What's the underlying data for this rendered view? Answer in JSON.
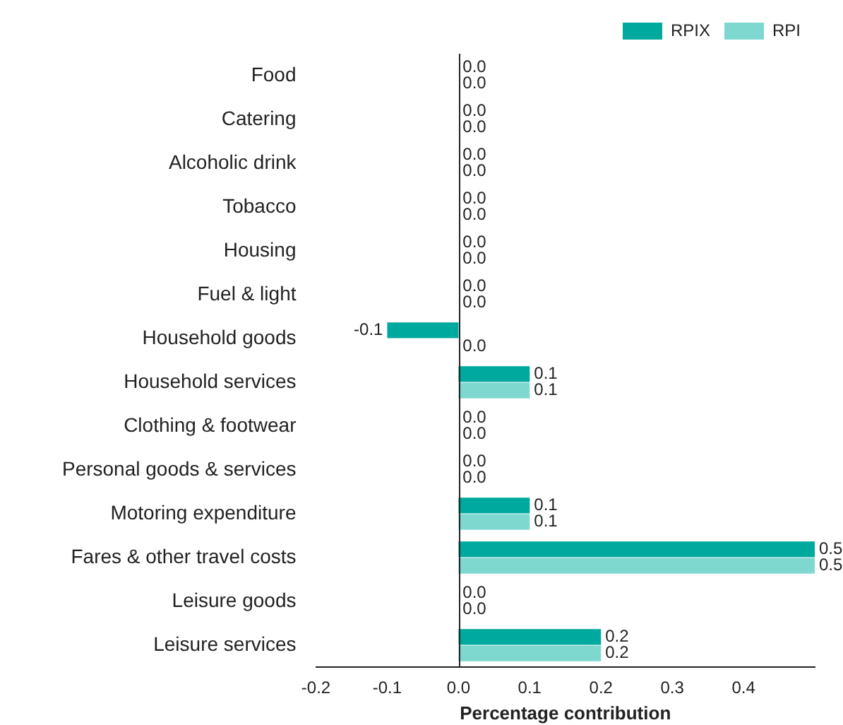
{
  "chart_data": {
    "type": "bar",
    "orientation": "horizontal",
    "xlabel": "Percentage contribution",
    "categories": [
      "Food",
      "Catering",
      "Alcoholic drink",
      "Tobacco",
      "Housing",
      "Fuel & light",
      "Household goods",
      "Household services",
      "Clothing & footwear",
      "Personal goods & services",
      "Motoring expenditure",
      "Fares & other travel costs",
      "Leisure goods",
      "Leisure services"
    ],
    "series": [
      {
        "name": "RPIX",
        "color": "#00a99d",
        "values": [
          0,
          0,
          0,
          0,
          0,
          0,
          -0.1,
          0.1,
          0,
          0,
          0.1,
          0.5,
          0,
          0.2
        ],
        "value_labels": [
          "0.0",
          "0.0",
          "0.0",
          "0.0",
          "0.0",
          "0.0",
          "-0.1",
          "0.1",
          "0.0",
          "0.0",
          "0.1",
          "0.5",
          "0.0",
          "0.2"
        ]
      },
      {
        "name": "RPI",
        "color": "#7fd8d0",
        "values": [
          0,
          0,
          0,
          0,
          0,
          0,
          0,
          0.1,
          0,
          0,
          0.1,
          0.5,
          0,
          0.2
        ],
        "value_labels": [
          "0.0",
          "0.0",
          "0.0",
          "0.0",
          "0.0",
          "0.0",
          "0.0",
          "0.1",
          "0.0",
          "0.0",
          "0.1",
          "0.5",
          "0.0",
          "0.2"
        ]
      }
    ],
    "xlim": [
      -0.2,
      0.5
    ],
    "xticks": [
      {
        "value": -0.2,
        "label": "-0.2"
      },
      {
        "value": -0.1,
        "label": "-0.1"
      },
      {
        "value": 0,
        "label": "0.0"
      },
      {
        "value": 0.1,
        "label": "0.1"
      },
      {
        "value": 0.2,
        "label": "0.2"
      },
      {
        "value": 0.3,
        "label": "0.3"
      },
      {
        "value": 0.4,
        "label": "0.4"
      }
    ],
    "ref_lines": [
      {
        "axis": "x",
        "value": 0,
        "color": "#222222"
      }
    ],
    "legend": "top right"
  }
}
